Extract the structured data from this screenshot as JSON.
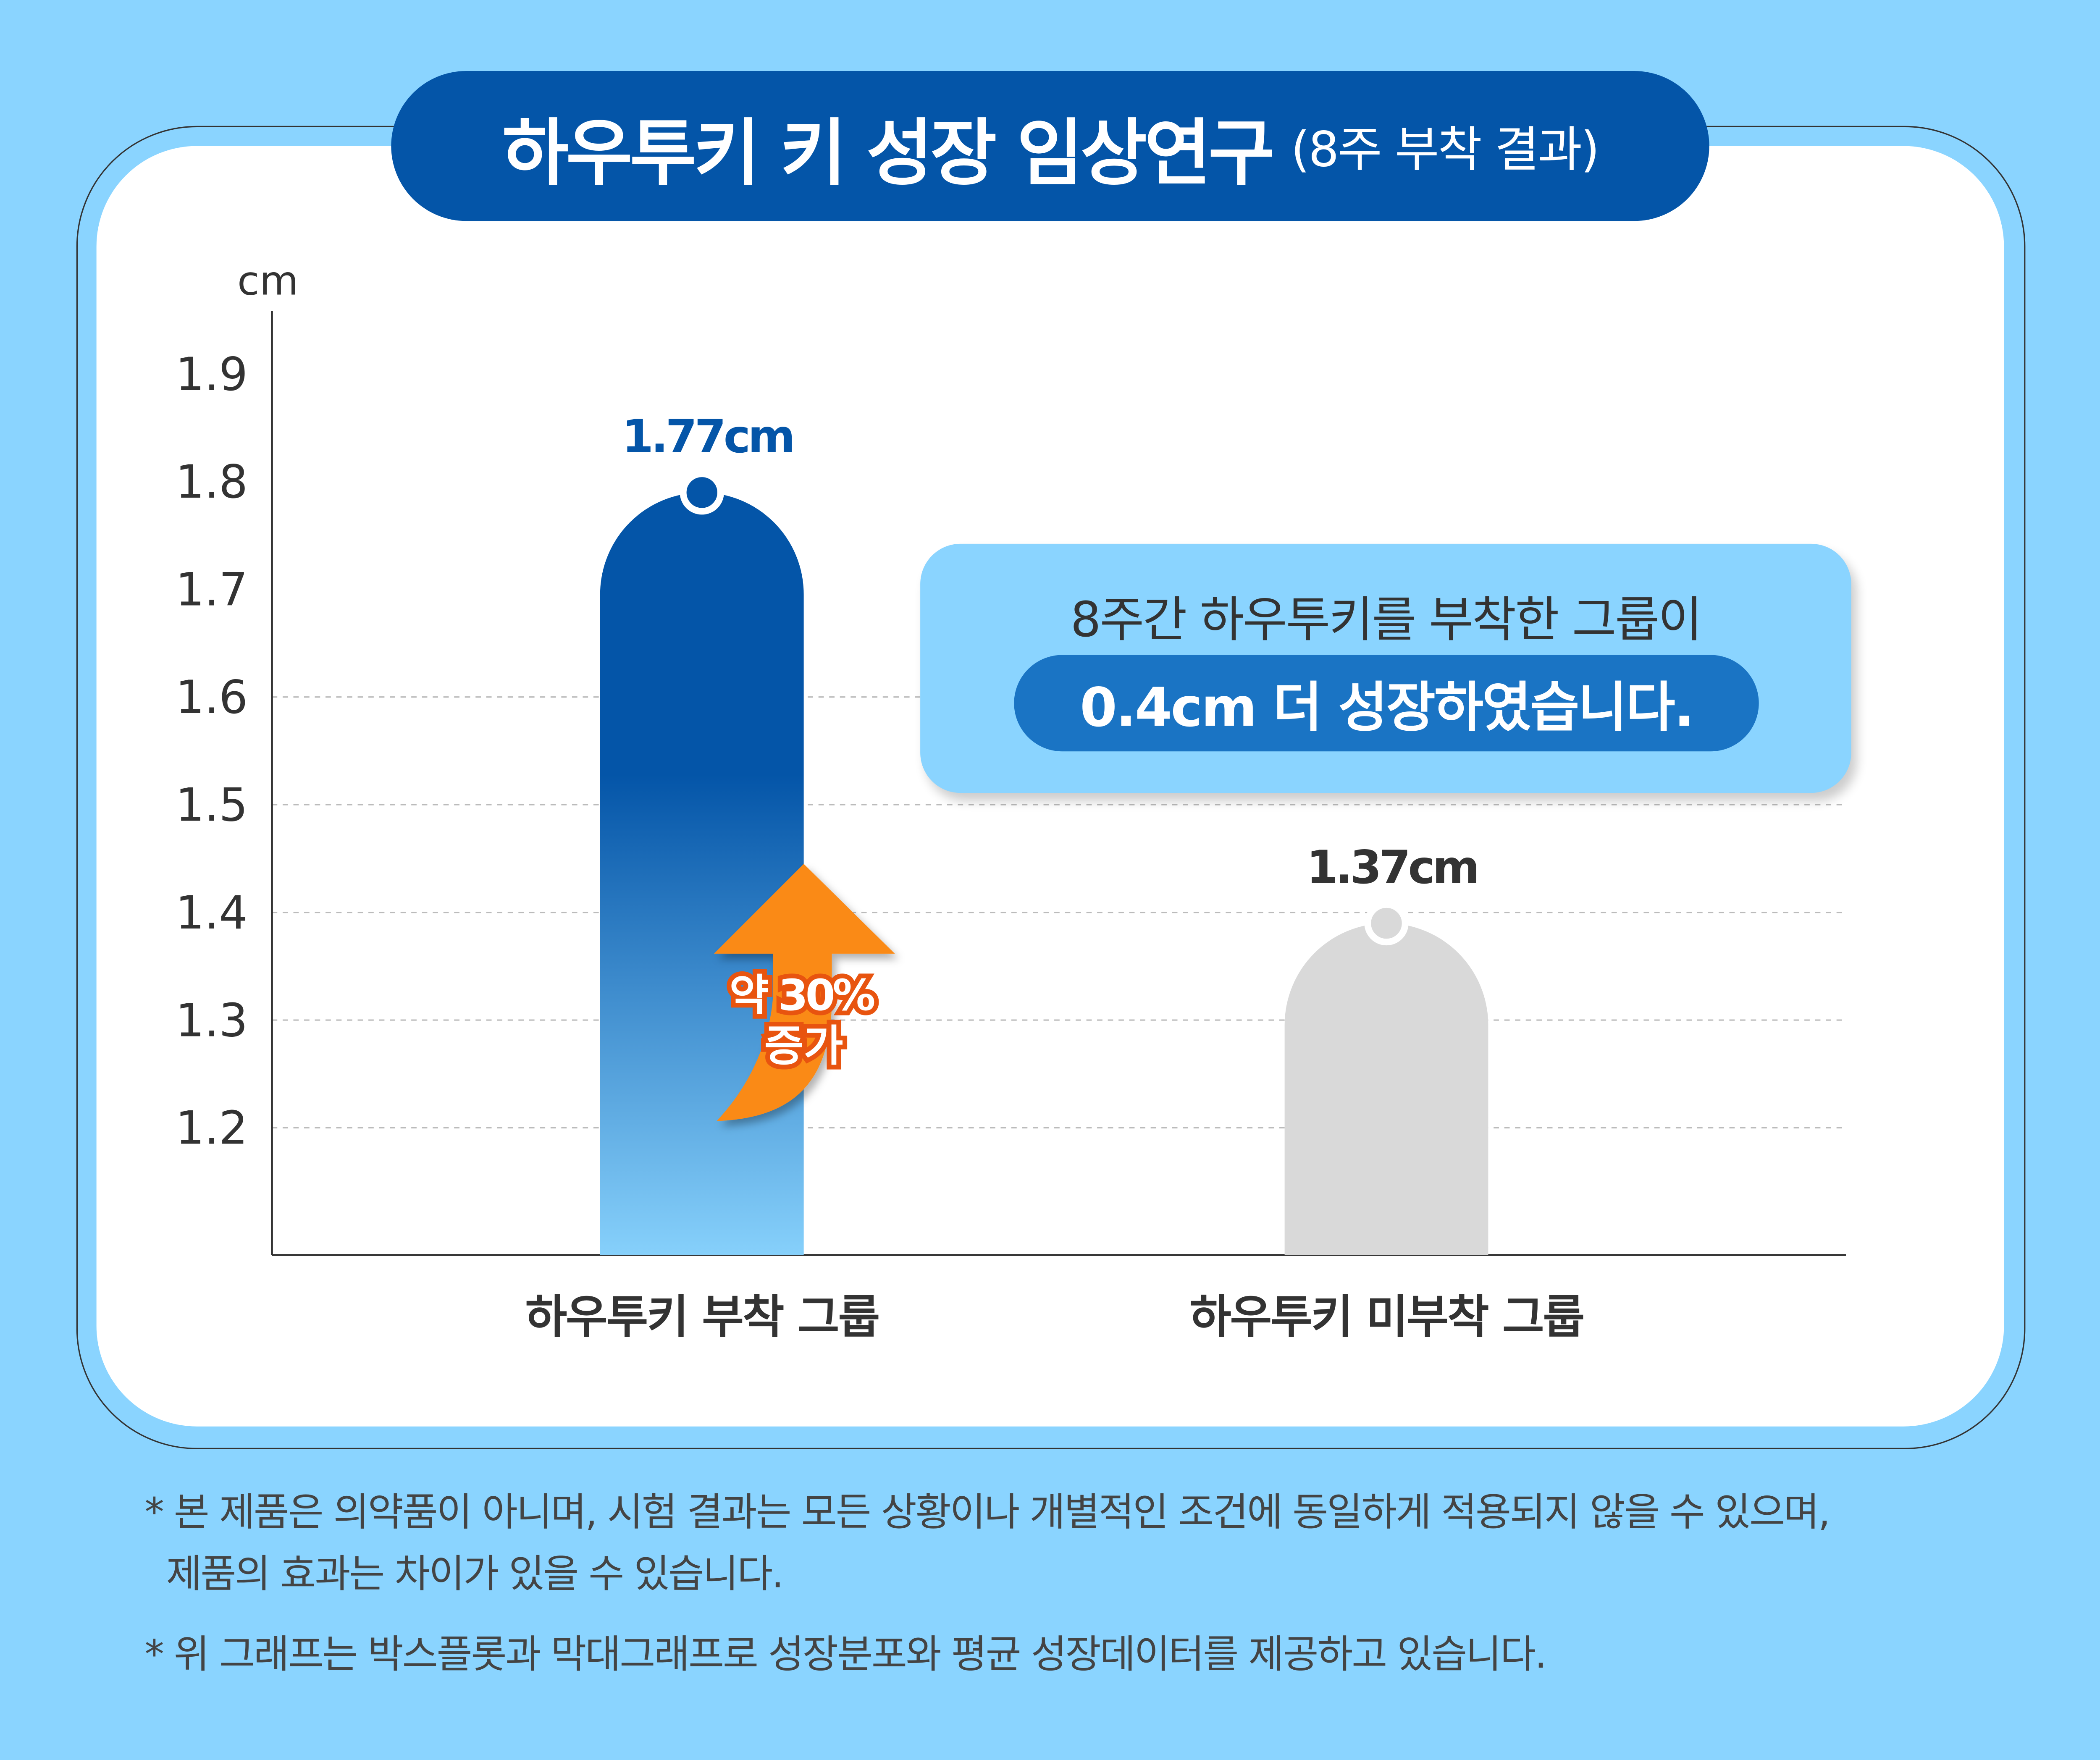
{
  "title": {
    "main": "하우투키 키 성장 임상연구",
    "sub": "(8주 부착 결과)"
  },
  "callout": {
    "line1": "8주간 하우투키를 부착한 그룹이",
    "line2": "0.4cm 더 성장하였습니다."
  },
  "arrow": {
    "label1": "약 30%",
    "label2": "증가",
    "color": "#fa8a18"
  },
  "notes": [
    "* 본 제품은 의약품이 아니며, 시험 결과는 모든 상황이나 개별적인 조건에 동일하게 적용되지 않을 수 있으며,",
    "제품의 효과는 차이가 있을 수 있습니다.",
    "* 위 그래프는 박스플롯과 막대그래프로 성장분포와 평균 성장데이터를 제공하고 있습니다."
  ],
  "chart_data": {
    "type": "bar",
    "ylabel": "cm",
    "yticks": [
      "1.9",
      "1.8",
      "1.7",
      "1.6",
      "1.5",
      "1.4",
      "1.3",
      "1.2"
    ],
    "ylim": [
      1.08,
      1.9
    ],
    "grid": "dashed horizontal",
    "categories": [
      "하우투키 부착 그룹",
      "하우투키 미부착 그룹"
    ],
    "values": [
      1.77,
      1.37
    ],
    "data_labels": [
      "1.77cm",
      "1.37cm"
    ],
    "colors": [
      "#0455a8",
      "#d9d9d9"
    ]
  }
}
